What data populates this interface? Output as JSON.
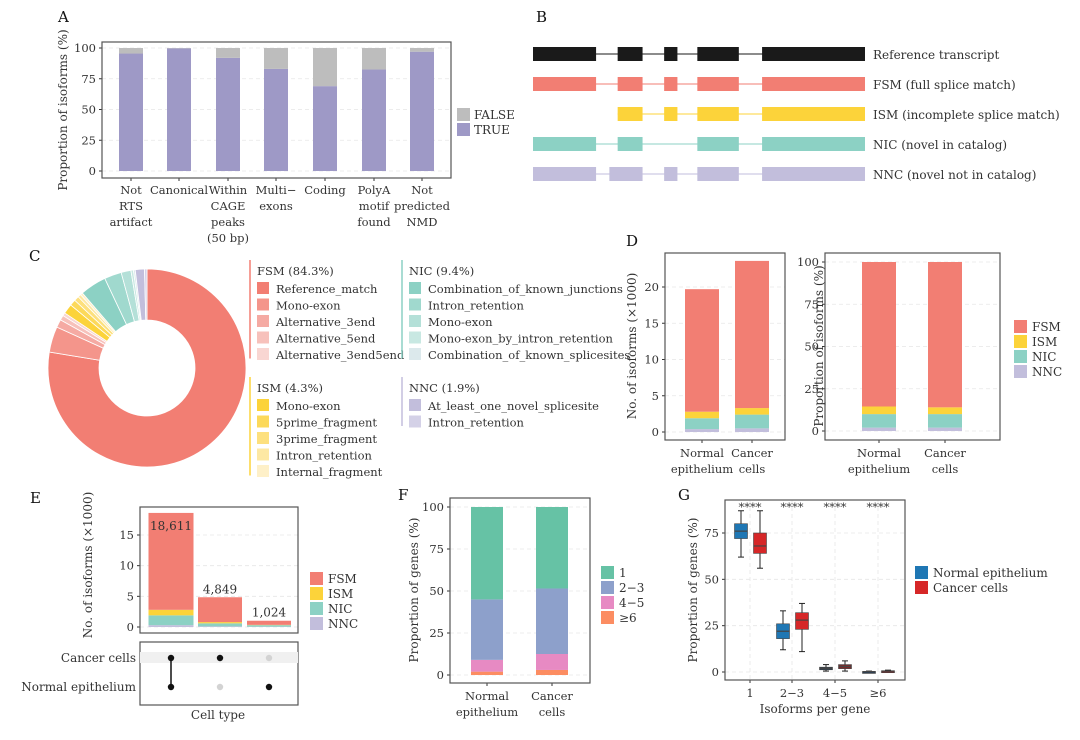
{
  "panels": {
    "A": "A",
    "B": "B",
    "C": "C",
    "D": "D",
    "E": "E",
    "F": "F",
    "G": "G"
  },
  "colors": {
    "TRUE": "#9e99c6",
    "FALSE": "#bdbdbd",
    "FSM": "#f27e73",
    "ISM": "#fcd33a",
    "NIC": "#8cd1c4",
    "NNC": "#c2bedc",
    "ref": "#1a1a1a",
    "g1": "#66c2a5",
    "g23": "#8da0cb",
    "g45": "#e78ac3",
    "g6": "#fc8d62",
    "normal": "#1f77b4",
    "cancer": "#d62728"
  },
  "chart_data": [
    {
      "id": "A",
      "type": "bar",
      "stacked": true,
      "title": "",
      "ylabel": "Proportion of isoforms (%)",
      "xlabel": "",
      "ylim": [
        0,
        100
      ],
      "yticks": [
        0,
        25,
        50,
        75,
        100
      ],
      "categories": [
        [
          "Not",
          "RTS",
          "artifact"
        ],
        [
          "Canonical"
        ],
        [
          "Within",
          "CAGE",
          "peaks",
          "(50 bp)"
        ],
        [
          "Multi−",
          "exons"
        ],
        [
          "Coding"
        ],
        [
          "PolyA",
          "motif",
          "found"
        ],
        [
          "Not",
          "predicted",
          "NMD"
        ]
      ],
      "series": [
        {
          "name": "TRUE",
          "values": [
            95.5,
            99.7,
            92,
            83,
            69,
            82.5,
            97
          ]
        },
        {
          "name": "FALSE",
          "values": [
            4.5,
            0.3,
            8,
            17,
            31,
            17.5,
            3
          ]
        }
      ],
      "legend": [
        "FALSE",
        "TRUE"
      ],
      "legend_position": "right"
    },
    {
      "id": "B",
      "type": "diagram",
      "rows": [
        {
          "label": "Reference transcript",
          "color_key": "ref",
          "exons": [
            [
              0,
              0.19
            ],
            [
              0.255,
              0.33
            ],
            [
              0.395,
              0.435
            ],
            [
              0.495,
              0.62
            ],
            [
              0.69,
              1.0
            ]
          ]
        },
        {
          "label": "FSM (full splice match)",
          "color_key": "FSM",
          "exons": [
            [
              0,
              0.19
            ],
            [
              0.255,
              0.33
            ],
            [
              0.395,
              0.435
            ],
            [
              0.495,
              0.62
            ],
            [
              0.69,
              1.0
            ]
          ]
        },
        {
          "label": "ISM (incomplete splice match)",
          "color_key": "ISM",
          "exons": [
            [
              0.255,
              0.33
            ],
            [
              0.395,
              0.435
            ],
            [
              0.495,
              0.62
            ],
            [
              0.69,
              1.0
            ]
          ]
        },
        {
          "label": "NIC (novel in catalog)",
          "color_key": "NIC",
          "exons": [
            [
              0,
              0.19
            ],
            [
              0.255,
              0.33
            ],
            [
              0.495,
              0.62
            ],
            [
              0.69,
              1.0
            ]
          ]
        },
        {
          "label": "NNC (novel not in catalog)",
          "color_key": "NNC",
          "exons": [
            [
              0,
              0.19
            ],
            [
              0.23,
              0.33
            ],
            [
              0.395,
              0.435
            ],
            [
              0.495,
              0.62
            ],
            [
              0.69,
              1.0
            ]
          ]
        }
      ]
    },
    {
      "id": "C",
      "type": "pie",
      "donut": true,
      "groups": [
        {
          "name": "FSM (84.3%)",
          "color": "#f27e73",
          "items": [
            {
              "label": "Reference_match",
              "value": 77.5,
              "color": "#f27e73"
            },
            {
              "label": "Mono-exon",
              "value": 4.2,
              "color": "#f4958b"
            },
            {
              "label": "Alternative_3end",
              "value": 1.3,
              "color": "#f5aaa3"
            },
            {
              "label": "Alternative_5end",
              "value": 0.8,
              "color": "#f7c1bb"
            },
            {
              "label": "Alternative_3end5end",
              "value": 0.5,
              "color": "#f9d6d2"
            }
          ]
        },
        {
          "name": "ISM (4.3%)",
          "color": "#fcd33a",
          "items": [
            {
              "label": "Mono-exon",
              "value": 1.6,
              "color": "#fcd33a"
            },
            {
              "label": "5prime_fragment",
              "value": 1.0,
              "color": "#fcd95a"
            },
            {
              "label": "3prime_fragment",
              "value": 0.8,
              "color": "#fde07d"
            },
            {
              "label": "Intron_retention",
              "value": 0.5,
              "color": "#fde8a3"
            },
            {
              "label": "Internal_fragment",
              "value": 0.4,
              "color": "#fef0c8"
            }
          ]
        },
        {
          "name": "NIC (9.4%)",
          "color": "#8cd1c4",
          "items": [
            {
              "label": "Combination_of_known_junctions",
              "value": 4.3,
              "color": "#8cd1c4"
            },
            {
              "label": "Intron_retention",
              "value": 2.8,
              "color": "#a0d9ce"
            },
            {
              "label": "Mono-exon",
              "value": 1.6,
              "color": "#b4e0d8"
            },
            {
              "label": "Mono-exon_by_intron_retention",
              "value": 0.4,
              "color": "#c8e8e2"
            },
            {
              "label": "Combination_of_known_splicesites",
              "value": 0.3,
              "color": "#dce9ec"
            }
          ]
        },
        {
          "name": "NNC (1.9%)",
          "color": "#c2bedc",
          "items": [
            {
              "label": "At_least_one_novel_splicesite",
              "value": 1.5,
              "color": "#c2bedc"
            },
            {
              "label": "Intron_retention",
              "value": 0.4,
              "color": "#d4d1e7"
            }
          ]
        }
      ]
    },
    {
      "id": "D1",
      "type": "bar",
      "stacked": true,
      "ylabel": "No. of isoforms (×1000)",
      "ylim": [
        0,
        24
      ],
      "yticks": [
        0,
        5,
        10,
        15,
        20
      ],
      "categories": [
        [
          "Normal",
          "epithelium"
        ],
        [
          "Cancer",
          "cells"
        ]
      ],
      "series": [
        {
          "name": "NNC",
          "values": [
            0.4,
            0.5
          ]
        },
        {
          "name": "NIC",
          "values": [
            1.5,
            1.9
          ]
        },
        {
          "name": "ISM",
          "values": [
            0.9,
            0.9
          ]
        },
        {
          "name": "FSM",
          "values": [
            16.9,
            20.3
          ]
        }
      ]
    },
    {
      "id": "D2",
      "type": "bar",
      "stacked": true,
      "ylabel": "Proportion of isoforms (%)",
      "ylim": [
        0,
        100
      ],
      "yticks": [
        0,
        25,
        50,
        75,
        100
      ],
      "categories": [
        [
          "Normal",
          "epithelium"
        ],
        [
          "Cancer",
          "cells"
        ]
      ],
      "series": [
        {
          "name": "NNC",
          "values": [
            2,
            2
          ]
        },
        {
          "name": "NIC",
          "values": [
            8,
            8
          ]
        },
        {
          "name": "ISM",
          "values": [
            4.5,
            4
          ]
        },
        {
          "name": "FSM",
          "values": [
            85.5,
            86
          ]
        }
      ],
      "legend": [
        "FSM",
        "ISM",
        "NIC",
        "NNC"
      ],
      "legend_position": "right"
    },
    {
      "id": "E",
      "type": "bar",
      "stacked": true,
      "ylabel": "No. of isoforms (×1000)",
      "xlabel": "Cell type",
      "ylim": [
        0,
        19
      ],
      "yticks": [
        0,
        5,
        10,
        15
      ],
      "categories": [
        "Both",
        "Cancer cells only",
        "Normal epithelium only"
      ],
      "totals_labels": [
        "18,611",
        "4,849",
        "1,024"
      ],
      "series": [
        {
          "name": "NNC",
          "values": [
            0.3,
            0.1,
            0.05
          ]
        },
        {
          "name": "NIC",
          "values": [
            1.6,
            0.5,
            0.25
          ]
        },
        {
          "name": "ISM",
          "values": [
            0.9,
            0.2,
            0.05
          ]
        },
        {
          "name": "FSM",
          "values": [
            15.8,
            4.05,
            0.67
          ]
        }
      ],
      "matrix_rows": [
        "Cancer cells",
        "Normal epithelium"
      ],
      "matrix": [
        [
          1,
          1
        ],
        [
          1,
          0
        ],
        [
          0,
          1
        ]
      ],
      "legend": [
        "FSM",
        "ISM",
        "NIC",
        "NNC"
      ],
      "legend_position": "right"
    },
    {
      "id": "F",
      "type": "bar",
      "stacked": true,
      "ylabel": "Proportion of genes (%)",
      "ylim": [
        0,
        100
      ],
      "yticks": [
        0,
        25,
        50,
        75,
        100
      ],
      "categories": [
        [
          "Normal",
          "epithelium"
        ],
        [
          "Cancer",
          "cells"
        ]
      ],
      "series": [
        {
          "name": "≥6",
          "values": [
            2,
            3
          ]
        },
        {
          "name": "4−5",
          "values": [
            7,
            9.5
          ]
        },
        {
          "name": "2−3",
          "values": [
            36,
            39
          ]
        },
        {
          "name": "1",
          "values": [
            55,
            48.5
          ]
        }
      ],
      "legend": [
        "1",
        "2−3",
        "4−5",
        "≥6"
      ],
      "legend_position": "right"
    },
    {
      "id": "G",
      "type": "boxplot",
      "ylabel": "Proportion of genes (%)",
      "xlabel": "Isoforms per gene",
      "ylim": [
        -4,
        90
      ],
      "yticks": [
        0,
        25,
        50,
        75
      ],
      "categories": [
        "1",
        "2−3",
        "4−5",
        "≥6"
      ],
      "significance": [
        "****",
        "****",
        "****",
        "****"
      ],
      "series": [
        {
          "name": "Normal epithelium",
          "boxes": [
            [
              62,
              72,
              76,
              80,
              87
            ],
            [
              12,
              18,
              22,
              26,
              33
            ],
            [
              0.5,
              1.2,
              2,
              2.6,
              4
            ],
            [
              0,
              0.1,
              0.2,
              0.3,
              0.5
            ]
          ]
        },
        {
          "name": "Cancer cells",
          "boxes": [
            [
              56,
              64,
              68,
              75,
              87
            ],
            [
              11,
              23,
              28,
              32,
              37
            ],
            [
              0.5,
              1.8,
              3,
              4,
              6
            ],
            [
              0,
              0.3,
              0.5,
              0.7,
              1
            ]
          ]
        }
      ],
      "legend": [
        "Normal epithelium",
        "Cancer cells"
      ],
      "legend_position": "right"
    }
  ]
}
